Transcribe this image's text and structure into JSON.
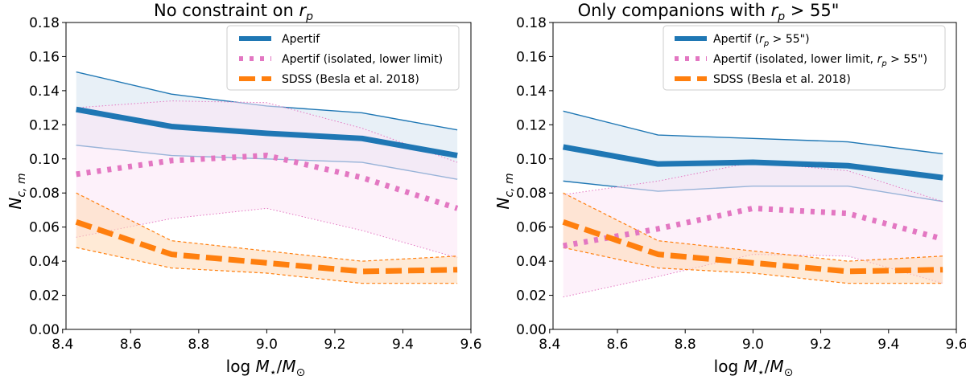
{
  "colors": {
    "apertif": "#1f77b4",
    "apertif_fill": "#d6e4f0",
    "isolated": "#e377c2",
    "isolated_fill": "#fbe6f5",
    "sdss": "#ff7f0e",
    "sdss_fill": "#ffd8b4"
  },
  "chart_data": [
    {
      "type": "line",
      "title": "No constraint on r_p",
      "title_parts": [
        "No constraint on ",
        "r",
        "p"
      ],
      "xlabel_parts": [
        "log ",
        "M",
        "⋆",
        "/",
        "M",
        "⊙"
      ],
      "ylabel_parts": [
        "N",
        "c, m"
      ],
      "xlim": [
        8.41,
        9.6
      ],
      "ylim": [
        0.0,
        0.18
      ],
      "xticks": [
        "8.4",
        "8.6",
        "8.8",
        "9.0",
        "9.2",
        "9.4",
        "9.6"
      ],
      "yticks": [
        "0.00",
        "0.02",
        "0.04",
        "0.06",
        "0.08",
        "0.10",
        "0.12",
        "0.14",
        "0.16",
        "0.18"
      ],
      "legend_position": "top-right",
      "series": [
        {
          "name": "Apertif",
          "key": "apertif",
          "style": "solid",
          "x": [
            8.44,
            8.72,
            9.0,
            9.28,
            9.56
          ],
          "values": [
            0.129,
            0.119,
            0.115,
            0.112,
            0.102
          ],
          "lower": [
            0.108,
            0.102,
            0.1,
            0.098,
            0.088
          ],
          "upper": [
            0.151,
            0.138,
            0.131,
            0.127,
            0.117
          ]
        },
        {
          "name": "Apertif (isolated, lower limit)",
          "key": "isolated",
          "style": "dotted",
          "x": [
            8.44,
            8.72,
            9.0,
            9.28,
            9.56
          ],
          "values": [
            0.091,
            0.099,
            0.102,
            0.089,
            0.071
          ],
          "lower": [
            0.054,
            0.065,
            0.071,
            0.058,
            0.042
          ],
          "upper": [
            0.13,
            0.134,
            0.133,
            0.118,
            0.098
          ]
        },
        {
          "name": "SDSS (Besla et al. 2018)",
          "key": "sdss",
          "style": "dashed",
          "x": [
            8.44,
            8.72,
            9.0,
            9.28,
            9.56
          ],
          "values": [
            0.063,
            0.044,
            0.039,
            0.034,
            0.035
          ],
          "lower": [
            0.048,
            0.036,
            0.033,
            0.027,
            0.027
          ],
          "upper": [
            0.08,
            0.052,
            0.046,
            0.04,
            0.043
          ]
        }
      ],
      "legend": [
        {
          "key": "apertif",
          "parts": [
            "Apertif"
          ]
        },
        {
          "key": "isolated",
          "parts": [
            "Apertif (isolated, lower limit)"
          ]
        },
        {
          "key": "sdss",
          "parts": [
            "SDSS (Besla et al. 2018)"
          ]
        }
      ]
    },
    {
      "type": "line",
      "title": "Only companions with r_p > 55\"",
      "title_parts": [
        "Only companions with ",
        "r",
        "p",
        " > 55\""
      ],
      "xlabel_parts": [
        "log ",
        "M",
        "⋆",
        "/",
        "M",
        "⊙"
      ],
      "ylabel_parts": [
        "N",
        "c, m"
      ],
      "xlim": [
        8.41,
        9.6
      ],
      "ylim": [
        0.0,
        0.18
      ],
      "xticks": [
        "8.4",
        "8.6",
        "8.8",
        "9.0",
        "9.2",
        "9.4",
        "9.6"
      ],
      "yticks": [
        "0.00",
        "0.02",
        "0.04",
        "0.06",
        "0.08",
        "0.10",
        "0.12",
        "0.14",
        "0.16",
        "0.18"
      ],
      "legend_position": "top-right",
      "series": [
        {
          "name": "Apertif (r_p > 55\")",
          "key": "apertif",
          "style": "solid",
          "x": [
            8.44,
            8.72,
            9.0,
            9.28,
            9.56
          ],
          "values": [
            0.107,
            0.097,
            0.098,
            0.096,
            0.089
          ],
          "lower": [
            0.087,
            0.081,
            0.084,
            0.084,
            0.075
          ],
          "upper": [
            0.128,
            0.114,
            0.112,
            0.11,
            0.103
          ]
        },
        {
          "name": "Apertif (isolated, lower limit, r_p > 55\")",
          "key": "isolated",
          "style": "dotted",
          "x": [
            8.44,
            8.72,
            9.0,
            9.28,
            9.56
          ],
          "values": [
            0.049,
            0.059,
            0.071,
            0.068,
            0.053
          ],
          "lower": [
            0.019,
            0.031,
            0.044,
            0.043,
            0.027
          ],
          "upper": [
            0.079,
            0.087,
            0.098,
            0.093,
            0.075
          ]
        },
        {
          "name": "SDSS (Besla et al. 2018)",
          "key": "sdss",
          "style": "dashed",
          "x": [
            8.44,
            8.72,
            9.0,
            9.28,
            9.56
          ],
          "values": [
            0.063,
            0.044,
            0.039,
            0.034,
            0.035
          ],
          "lower": [
            0.048,
            0.036,
            0.033,
            0.027,
            0.027
          ],
          "upper": [
            0.08,
            0.052,
            0.046,
            0.04,
            0.043
          ]
        }
      ],
      "legend": [
        {
          "key": "apertif",
          "parts": [
            "Apertif (",
            "r",
            "p",
            " > 55\")"
          ]
        },
        {
          "key": "isolated",
          "parts": [
            "Apertif (isolated, lower limit, ",
            "r",
            "p",
            " > 55\")"
          ]
        },
        {
          "key": "sdss",
          "parts": [
            "SDSS (Besla et al. 2018)"
          ]
        }
      ]
    }
  ]
}
